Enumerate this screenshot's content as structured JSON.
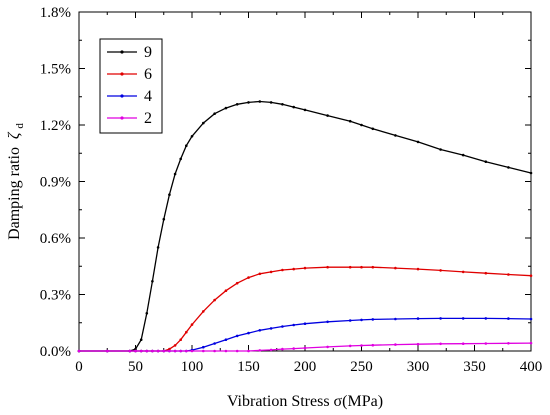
{
  "chart_data": {
    "type": "line",
    "title": "",
    "xlabel": "Vibration Stress σ(MPa)",
    "ylabel": "Damping ratio",
    "ylabel_symbol": "ζ",
    "ylabel_subscript": "d",
    "xlim": [
      0,
      400
    ],
    "ylim": [
      0,
      1.8
    ],
    "x_ticks": [
      0,
      50,
      100,
      150,
      200,
      250,
      300,
      350,
      400
    ],
    "x_tick_labels": [
      "0",
      "50",
      "100",
      "150",
      "200",
      "250",
      "300",
      "350",
      "400"
    ],
    "y_ticks": [
      0,
      0.3,
      0.6,
      0.9,
      1.2,
      1.5,
      1.8
    ],
    "y_tick_labels": [
      "0.0%",
      "0.3%",
      "0.6%",
      "0.9%",
      "1.2%",
      "1.5%",
      "1.8%"
    ],
    "y_unit": "%",
    "grid": false,
    "legend_position": "top-left",
    "x": [
      0,
      25,
      45,
      50,
      55,
      60,
      65,
      70,
      75,
      80,
      85,
      90,
      95,
      100,
      110,
      120,
      130,
      140,
      150,
      160,
      170,
      180,
      190,
      200,
      220,
      240,
      250,
      260,
      280,
      300,
      320,
      340,
      360,
      380,
      400
    ],
    "series": [
      {
        "name": "9",
        "color": "#000000",
        "values": [
          0,
          0,
          0,
          0.01,
          0.06,
          0.2,
          0.37,
          0.55,
          0.7,
          0.83,
          0.94,
          1.02,
          1.09,
          1.14,
          1.21,
          1.26,
          1.29,
          1.31,
          1.32,
          1.325,
          1.32,
          1.31,
          1.295,
          1.28,
          1.25,
          1.22,
          1.2,
          1.18,
          1.145,
          1.11,
          1.07,
          1.04,
          1.005,
          0.975,
          0.945
        ]
      },
      {
        "name": "6",
        "color": "#e00000",
        "values": [
          0,
          0,
          0,
          0,
          0,
          0,
          0,
          0,
          0,
          0.01,
          0.03,
          0.06,
          0.1,
          0.14,
          0.21,
          0.27,
          0.32,
          0.36,
          0.39,
          0.41,
          0.42,
          0.43,
          0.435,
          0.44,
          0.445,
          0.445,
          0.445,
          0.445,
          0.44,
          0.435,
          0.428,
          0.42,
          0.413,
          0.406,
          0.4
        ]
      },
      {
        "name": "4",
        "color": "#0000e0",
        "values": [
          0,
          0,
          0,
          0,
          0,
          0,
          0,
          0,
          0,
          0,
          0,
          0,
          0,
          0.005,
          0.02,
          0.04,
          0.06,
          0.08,
          0.095,
          0.11,
          0.12,
          0.13,
          0.138,
          0.145,
          0.155,
          0.162,
          0.165,
          0.168,
          0.17,
          0.172,
          0.173,
          0.173,
          0.173,
          0.172,
          0.17
        ]
      },
      {
        "name": "2",
        "color": "#e000e0",
        "values": [
          0,
          0,
          0,
          0,
          0,
          0,
          0,
          0,
          0,
          0,
          0,
          0,
          0,
          0,
          0,
          0,
          0,
          0,
          0,
          0.003,
          0.006,
          0.01,
          0.013,
          0.016,
          0.022,
          0.027,
          0.029,
          0.031,
          0.034,
          0.036,
          0.038,
          0.039,
          0.04,
          0.041,
          0.042
        ]
      }
    ]
  }
}
